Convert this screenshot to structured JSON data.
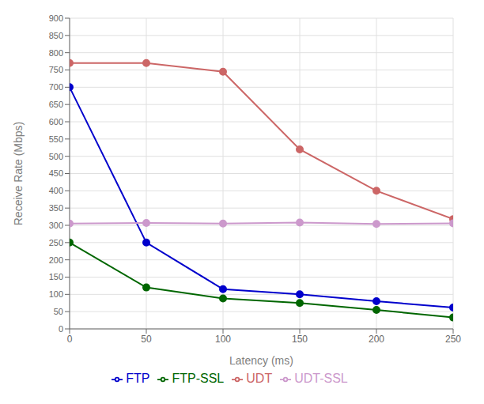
{
  "chart_data": {
    "type": "line",
    "x": [
      0,
      50,
      100,
      150,
      200,
      250
    ],
    "series": [
      {
        "name": "FTP",
        "color": "#0000cc",
        "marker": "circle",
        "values": [
          700,
          250,
          115,
          100,
          80,
          62
        ]
      },
      {
        "name": "UDT",
        "color": "#cc6666",
        "marker": "circle",
        "values": [
          770,
          770,
          745,
          520,
          400,
          318
        ]
      },
      {
        "name": "FTP-SSL",
        "color": "#006600",
        "marker": "circle",
        "values": [
          250,
          120,
          88,
          75,
          55,
          33
        ]
      },
      {
        "name": "UDT-SSL",
        "color": "#cc99cc",
        "marker": "circle",
        "values": [
          305,
          307,
          305,
          308,
          304,
          306
        ]
      }
    ],
    "xlabel": "Latency (ms)",
    "ylabel": "Receive Rate (Mbps)",
    "xlim": [
      0,
      250
    ],
    "ylim": [
      0,
      900
    ],
    "xticks": [
      0,
      50,
      100,
      150,
      200,
      250
    ],
    "yticks": [
      0,
      50,
      100,
      150,
      200,
      250,
      300,
      350,
      400,
      450,
      500,
      550,
      600,
      650,
      700,
      750,
      800,
      850,
      900
    ],
    "grid": true,
    "legend": "bottom"
  }
}
